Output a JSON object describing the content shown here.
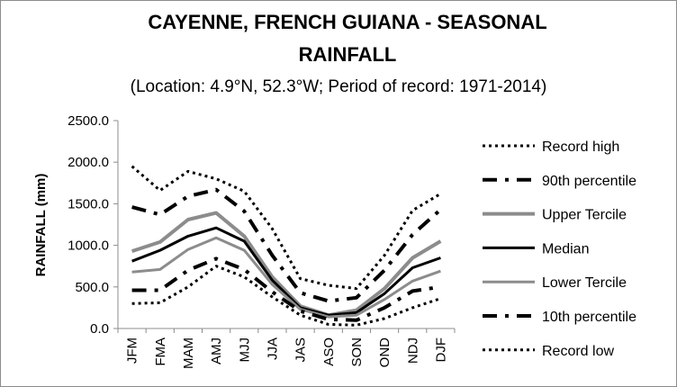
{
  "chart_data": {
    "type": "line",
    "title_lines": [
      "CAYENNE, FRENCH GUIANA - SEASONAL",
      "RAINFALL"
    ],
    "subtitle": "(Location: 4.9°N, 52.3°W; Period of record: 1971-2014)",
    "xlabel": "",
    "ylabel": "RAINFALL (mm)",
    "ylim": [
      0,
      2500
    ],
    "yticks": [
      "0.0",
      "500.0",
      "1000.0",
      "1500.0",
      "2000.0",
      "2500.0"
    ],
    "categories": [
      "JFM",
      "FMA",
      "MAM",
      "AMJ",
      "MJJ",
      "JJA",
      "JAS",
      "ASO",
      "SON",
      "OND",
      "NDJ",
      "DJF"
    ],
    "grid": false,
    "legend_position": "right",
    "series": [
      {
        "name": "Record high",
        "color": "#000000",
        "dash": "dotted",
        "width": 3,
        "values": [
          1950,
          1660,
          1890,
          1800,
          1650,
          1200,
          600,
          520,
          480,
          880,
          1420,
          1620
        ]
      },
      {
        "name": "90th percentile",
        "color": "#000000",
        "dash": "dashdot",
        "width": 4,
        "values": [
          1460,
          1370,
          1590,
          1670,
          1410,
          880,
          430,
          330,
          370,
          700,
          1130,
          1430
        ]
      },
      {
        "name": "Upper Tercile",
        "color": "#8c8c8c",
        "dash": "solid",
        "width": 4,
        "values": [
          930,
          1040,
          1310,
          1390,
          1110,
          620,
          270,
          160,
          220,
          480,
          850,
          1050
        ]
      },
      {
        "name": "Median",
        "color": "#000000",
        "dash": "solid",
        "width": 3,
        "values": [
          810,
          940,
          1110,
          1210,
          1050,
          580,
          250,
          160,
          190,
          420,
          730,
          850
        ]
      },
      {
        "name": "Lower Tercile",
        "color": "#8c8c8c",
        "dash": "solid",
        "width": 3,
        "values": [
          680,
          710,
          950,
          1090,
          940,
          530,
          230,
          140,
          160,
          350,
          570,
          690
        ]
      },
      {
        "name": "10th percentile",
        "color": "#000000",
        "dash": "dashdot",
        "width": 4,
        "values": [
          460,
          460,
          700,
          840,
          710,
          440,
          210,
          110,
          100,
          250,
          450,
          500
        ]
      },
      {
        "name": "Record low",
        "color": "#000000",
        "dash": "dotted",
        "width": 3,
        "values": [
          300,
          310,
          500,
          750,
          620,
          380,
          160,
          50,
          40,
          120,
          250,
          360
        ]
      }
    ]
  }
}
